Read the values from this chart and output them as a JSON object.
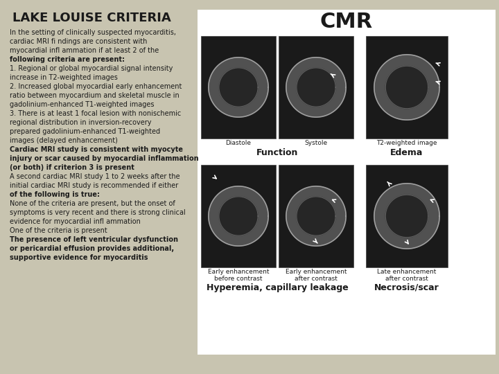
{
  "background_color": "#c8c4b0",
  "title": "LAKE LOUISE CRITERIA",
  "title_fontsize": 13,
  "title_fontweight": "bold",
  "cmr_label": "CMR",
  "cmr_fontsize": 22,
  "body_text": [
    {
      "text": "In the setting of clinically suspected myocarditis,",
      "bold": false,
      "fontsize": 7.0
    },
    {
      "text": "cardiac MRI fi ndings are consistent with",
      "bold": false,
      "fontsize": 7.0
    },
    {
      "text": "myocardial infl ammation if at least 2 of the",
      "bold": false,
      "fontsize": 7.0
    },
    {
      "text": "following criteria are present:",
      "bold": true,
      "fontsize": 7.0
    },
    {
      "text": "1. Regional or global myocardial signal intensity",
      "bold": false,
      "fontsize": 7.0
    },
    {
      "text": "increase in T2-weighted images",
      "bold": false,
      "fontsize": 7.0
    },
    {
      "text": "2. Increased global myocardial early enhancement",
      "bold": false,
      "fontsize": 7.0
    },
    {
      "text": "ratio between myocardium and skeletal muscle in",
      "bold": false,
      "fontsize": 7.0
    },
    {
      "text": "gadolinium-enhanced T1-weighted images",
      "bold": false,
      "fontsize": 7.0
    },
    {
      "text": "3. There is at least 1 focal lesion with nonischemic",
      "bold": false,
      "fontsize": 7.0
    },
    {
      "text": "regional distribution in inversion-recovery",
      "bold": false,
      "fontsize": 7.0
    },
    {
      "text": "prepared gadolinium-enhanced T1-weighted",
      "bold": false,
      "fontsize": 7.0
    },
    {
      "text": "images (delayed enhancement)",
      "bold": false,
      "fontsize": 7.0
    },
    {
      "text": "Cardiac MRI study is consistent with myocyte",
      "bold": true,
      "fontsize": 7.0
    },
    {
      "text": "injury or scar caused by myocardial inflammation",
      "bold": true,
      "fontsize": 7.0
    },
    {
      "text": "(or both) if criterion 3 is present",
      "bold": true,
      "fontsize": 7.0
    },
    {
      "text": "A second cardiac MRI study 1 to 2 weeks after the",
      "bold": false,
      "fontsize": 7.0
    },
    {
      "text": "initial cardiac MRI study is recommended if either",
      "bold": false,
      "fontsize": 7.0
    },
    {
      "text": "of the following is true:",
      "bold": true,
      "fontsize": 7.0
    },
    {
      "text": "None of the criteria are present, but the onset of",
      "bold": false,
      "fontsize": 7.0
    },
    {
      "text": "symptoms is very recent and there is strong clinical",
      "bold": false,
      "fontsize": 7.0
    },
    {
      "text": "evidence for myocardial infl ammation",
      "bold": false,
      "fontsize": 7.0
    },
    {
      "text": "One of the criteria is present",
      "bold": false,
      "fontsize": 7.0
    },
    {
      "text": "The presence of left ventricular dysfunction",
      "bold": true,
      "fontsize": 7.0
    },
    {
      "text": "or pericardial effusion provides additional,",
      "bold": true,
      "fontsize": 7.0
    },
    {
      "text": "supportive evidence for myocarditis",
      "bold": true,
      "fontsize": 7.0
    }
  ],
  "img_labels_top": [
    "Diastole",
    "Systole",
    "T2-weighted image"
  ],
  "img_labels_bottom": [
    "Early enhancement\nbefore contrast",
    "Early enhancement\nafter contrast",
    "Late enhancement\nafter contrast"
  ],
  "img_section_top": [
    "Function",
    "Edema"
  ],
  "img_section_bottom": [
    "Hyperemia, capillary leakage",
    "Necrosis/scar"
  ],
  "text_color": "#1a1a1a",
  "panel_bg": "#ffffff",
  "img_bg": "#333333"
}
